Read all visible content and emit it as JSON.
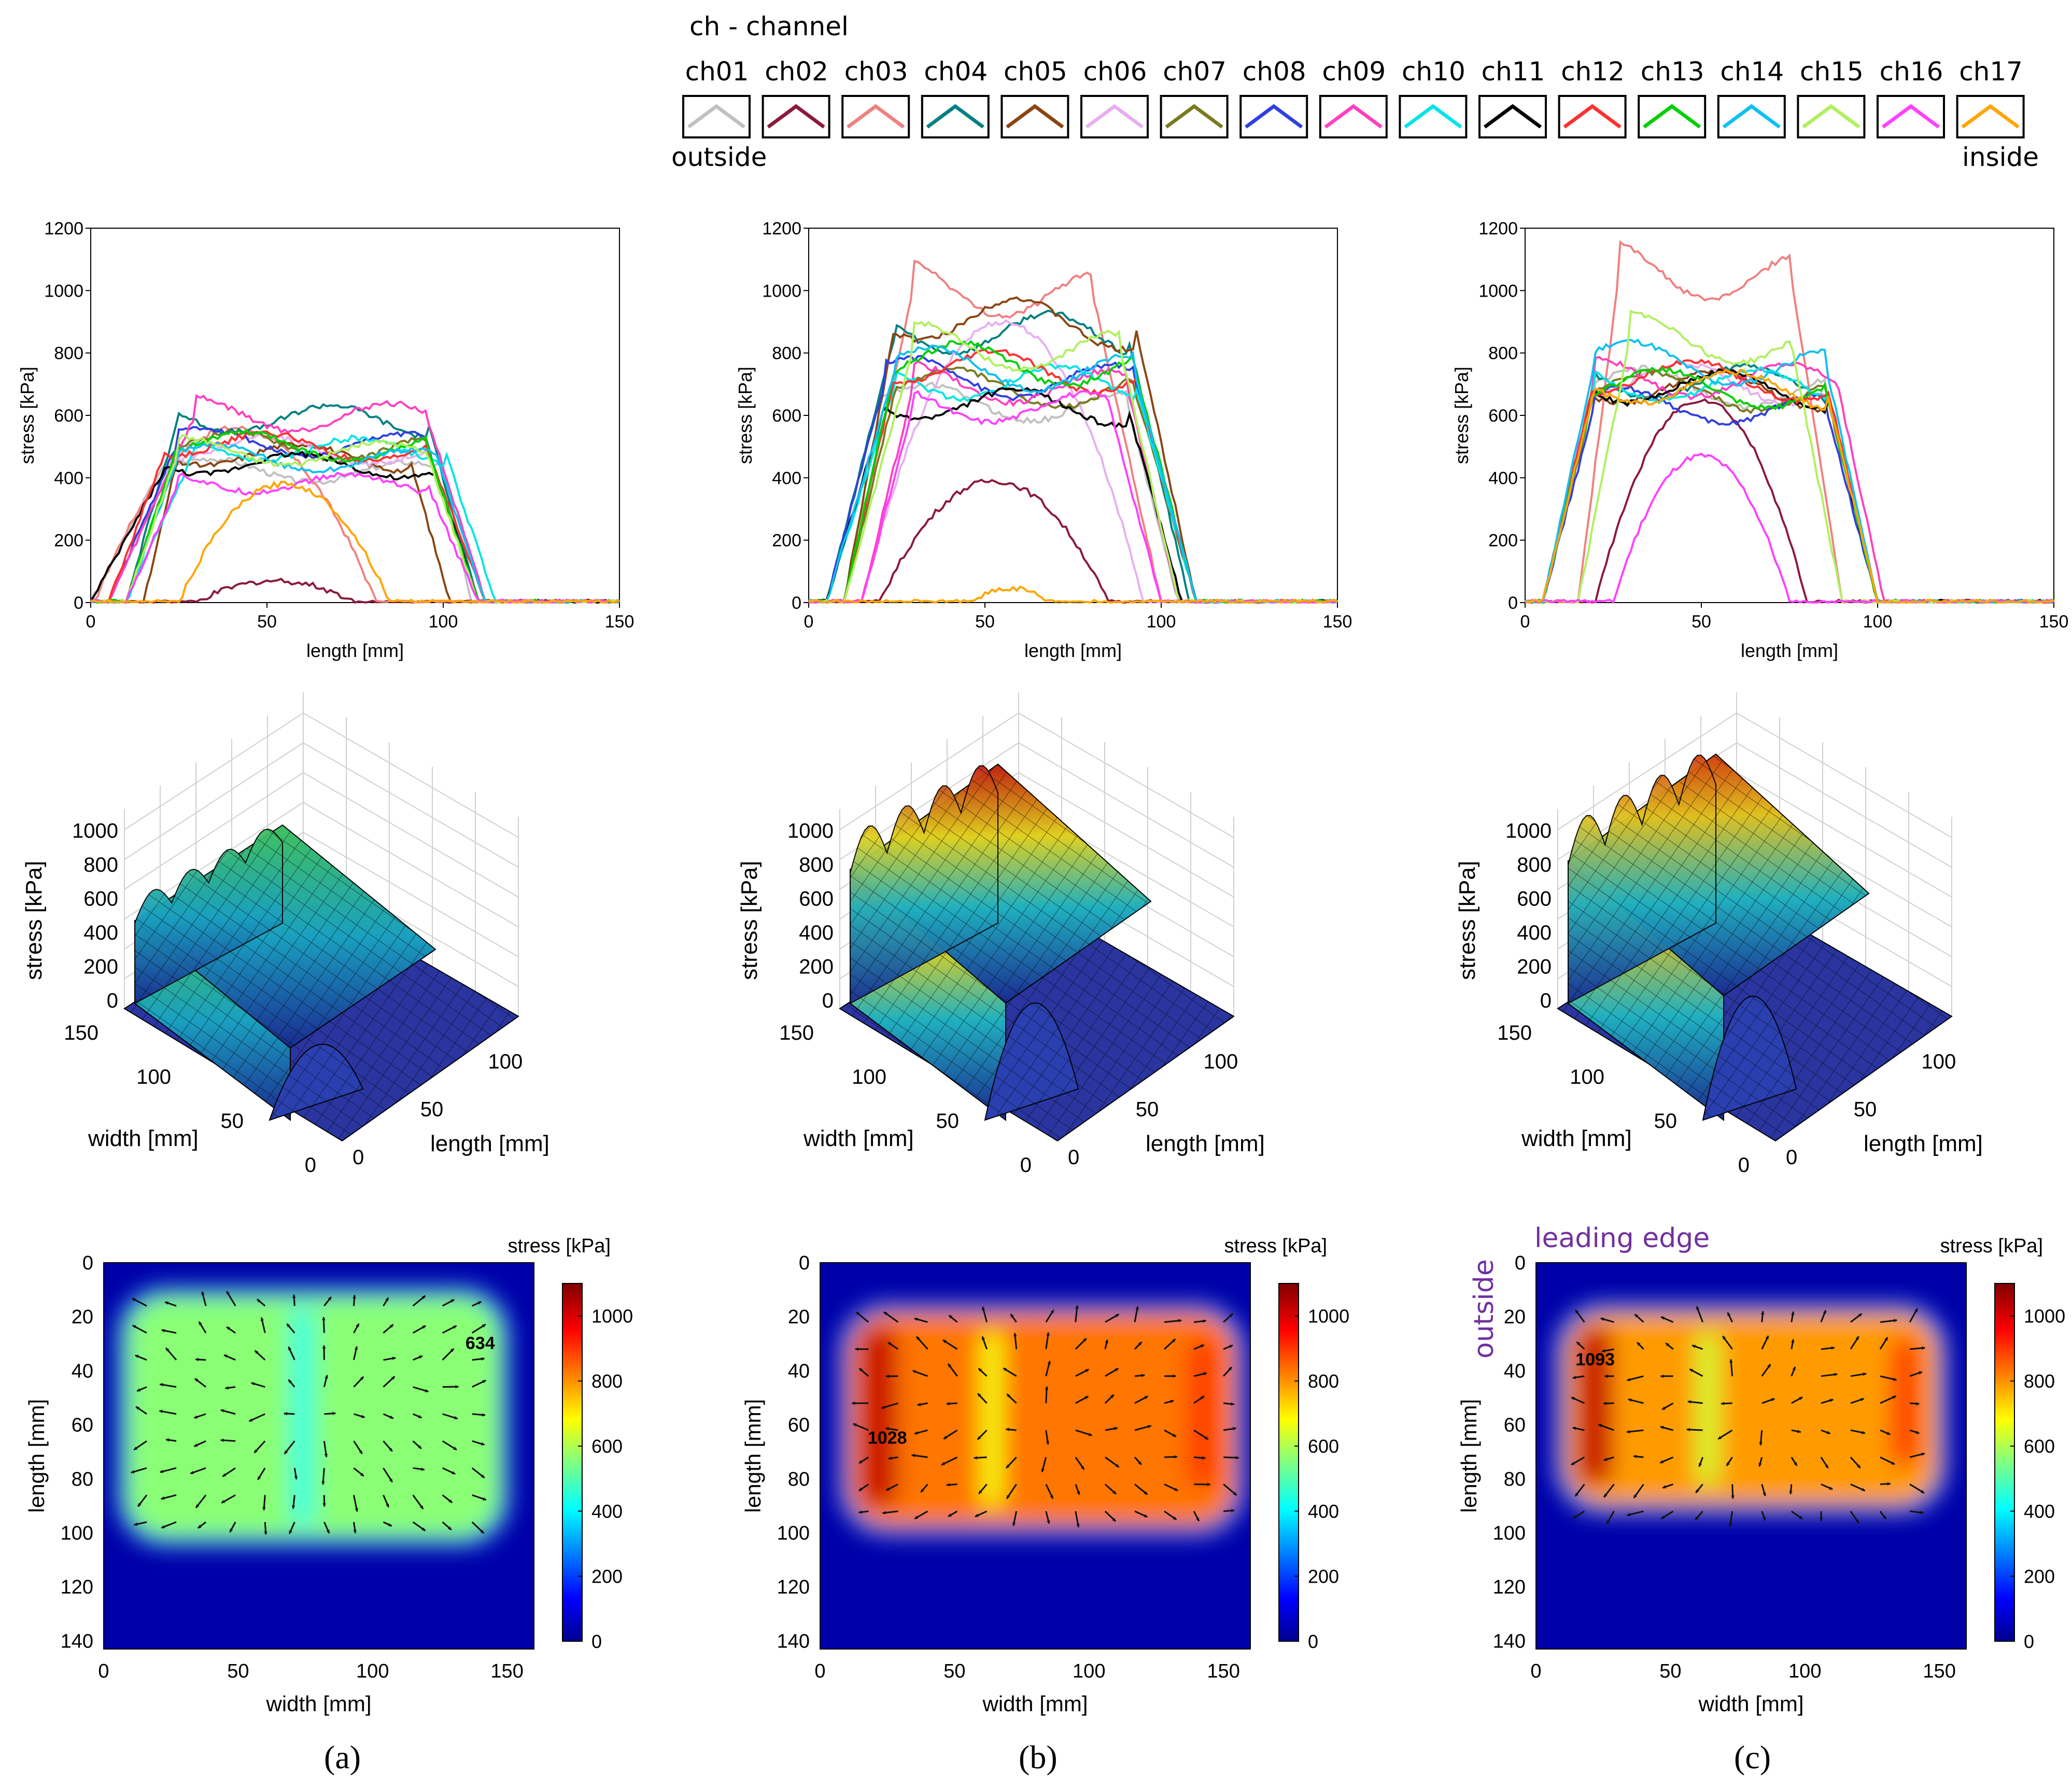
{
  "legend": {
    "title": "ch - channel",
    "channels": [
      {
        "name": "ch01",
        "color": "#c0c0c0"
      },
      {
        "name": "ch02",
        "color": "#8b1a3a"
      },
      {
        "name": "ch03",
        "color": "#f08080"
      },
      {
        "name": "ch04",
        "color": "#008080"
      },
      {
        "name": "ch05",
        "color": "#8b4513"
      },
      {
        "name": "ch06",
        "color": "#e6b0f0"
      },
      {
        "name": "ch07",
        "color": "#7a7a20"
      },
      {
        "name": "ch08",
        "color": "#3040e0"
      },
      {
        "name": "ch09",
        "color": "#ff40c0"
      },
      {
        "name": "ch10",
        "color": "#00e5e5"
      },
      {
        "name": "ch11",
        "color": "#000000"
      },
      {
        "name": "ch12",
        "color": "#ff3030"
      },
      {
        "name": "ch13",
        "color": "#00d000"
      },
      {
        "name": "ch14",
        "color": "#10c0f0"
      },
      {
        "name": "ch15",
        "color": "#b0f060"
      },
      {
        "name": "ch16",
        "color": "#ff40ff"
      },
      {
        "name": "ch17",
        "color": "#ffa500"
      }
    ],
    "outside_label": "outside",
    "inside_label": "inside"
  },
  "chart_data": [
    {
      "type": "line",
      "panel": "a",
      "xlabel": "length [mm]",
      "ylabel": "stress [kPa]",
      "xlim": [
        0,
        150
      ],
      "ylim": [
        0,
        1200
      ],
      "xticks": [
        0,
        50,
        100,
        150
      ],
      "yticks": [
        0,
        200,
        400,
        600,
        800,
        1000,
        1200
      ],
      "series": [
        {
          "name": "ch01",
          "profile": [
            0,
            20,
            100,
            108,
            0
          ],
          "plateau": 430
        },
        {
          "name": "ch02",
          "profile": [
            30,
            45,
            60,
            75,
            0
          ],
          "plateau": 70,
          "peak": true
        },
        {
          "name": "ch03",
          "profile": [
            10,
            22,
            60,
            90,
            0
          ],
          "plateau": 560,
          "peak": true
        },
        {
          "name": "ch04",
          "profile": [
            10,
            25,
            95,
            110,
            0
          ],
          "plateau": 600
        },
        {
          "name": "ch05",
          "profile": [
            15,
            25,
            90,
            102,
            0
          ],
          "plateau": 480
        },
        {
          "name": "ch06",
          "profile": [
            5,
            25,
            95,
            110,
            0
          ],
          "plateau": 500
        },
        {
          "name": "ch07",
          "profile": [
            10,
            25,
            95,
            110,
            0
          ],
          "plateau": 510
        },
        {
          "name": "ch08",
          "profile": [
            5,
            25,
            95,
            110,
            0
          ],
          "plateau": 520
        },
        {
          "name": "ch09",
          "profile": [
            5,
            30,
            95,
            112,
            0
          ],
          "plateau": 610
        },
        {
          "name": "ch10",
          "profile": [
            10,
            30,
            100,
            115,
            0
          ],
          "plateau": 500
        },
        {
          "name": "ch11",
          "profile": [
            0,
            22,
            97,
            110,
            0
          ],
          "plateau": 450
        },
        {
          "name": "ch12",
          "profile": [
            5,
            22,
            95,
            112,
            0
          ],
          "plateau": 510
        },
        {
          "name": "ch13",
          "profile": [
            10,
            25,
            95,
            110,
            0
          ],
          "plateau": 510
        },
        {
          "name": "ch14",
          "profile": [
            10,
            25,
            98,
            112,
            0
          ],
          "plateau": 470
        },
        {
          "name": "ch15",
          "profile": [
            10,
            25,
            95,
            110,
            0
          ],
          "plateau": 490
        },
        {
          "name": "ch16",
          "profile": [
            10,
            25,
            95,
            110,
            0
          ],
          "plateau": 390
        },
        {
          "name": "ch17",
          "profile": [
            25,
            40,
            70,
            85,
            0
          ],
          "plateau": 380,
          "peak": true
        }
      ]
    },
    {
      "type": "line",
      "panel": "b",
      "xlabel": "length [mm]",
      "ylabel": "stress [kPa]",
      "xlim": [
        0,
        150
      ],
      "ylim": [
        0,
        1200
      ],
      "xticks": [
        0,
        50,
        100,
        150
      ],
      "yticks": [
        0,
        200,
        400,
        600,
        800,
        1000,
        1200
      ],
      "series": [
        {
          "name": "ch01",
          "profile": [
            5,
            20,
            90,
            105,
            0
          ],
          "plateau": 650
        },
        {
          "name": "ch02",
          "profile": [
            20,
            40,
            65,
            85,
            0
          ],
          "plateau": 390,
          "peak": true
        },
        {
          "name": "ch03",
          "profile": [
            10,
            30,
            80,
            100,
            0
          ],
          "plateau": 1020
        },
        {
          "name": "ch04",
          "profile": [
            5,
            25,
            90,
            108,
            0
          ],
          "plateau": 880
        },
        {
          "name": "ch05",
          "profile": [
            10,
            25,
            92,
            110,
            0
          ],
          "plateau": 920
        },
        {
          "name": "ch06",
          "profile": [
            15,
            30,
            80,
            95,
            0
          ],
          "plateau": 900,
          "peak": true
        },
        {
          "name": "ch07",
          "profile": [
            10,
            25,
            92,
            110,
            0
          ],
          "plateau": 700
        },
        {
          "name": "ch08",
          "profile": [
            5,
            22,
            92,
            110,
            0
          ],
          "plateau": 730
        },
        {
          "name": "ch09",
          "profile": [
            15,
            30,
            90,
            105,
            0
          ],
          "plateau": 710
        },
        {
          "name": "ch10",
          "profile": [
            5,
            25,
            92,
            110,
            0
          ],
          "plateau": 720
        },
        {
          "name": "ch11",
          "profile": [
            5,
            22,
            90,
            106,
            0
          ],
          "plateau": 645
        },
        {
          "name": "ch12",
          "profile": [
            10,
            25,
            92,
            110,
            0
          ],
          "plateau": 760
        },
        {
          "name": "ch13",
          "profile": [
            10,
            25,
            92,
            110,
            0
          ],
          "plateau": 780
        },
        {
          "name": "ch14",
          "profile": [
            5,
            25,
            92,
            110,
            0
          ],
          "plateau": 760
        },
        {
          "name": "ch15",
          "profile": [
            10,
            30,
            88,
            105,
            0
          ],
          "plateau": 830
        },
        {
          "name": "ch16",
          "profile": [
            15,
            30,
            85,
            100,
            0
          ],
          "plateau": 640
        },
        {
          "name": "ch17",
          "profile": [
            45,
            52,
            62,
            68,
            0
          ],
          "plateau": 45,
          "peak": true
        }
      ]
    },
    {
      "type": "line",
      "panel": "c",
      "xlabel": "length [mm]",
      "ylabel": "stress [kPa]",
      "xlim": [
        0,
        150
      ],
      "ylim": [
        0,
        1200
      ],
      "xticks": [
        0,
        50,
        100,
        150
      ],
      "yticks": [
        0,
        200,
        400,
        600,
        800,
        1000,
        1200
      ],
      "series": [
        {
          "name": "ch01",
          "profile": [
            5,
            20,
            85,
            100,
            0
          ],
          "plateau": 700
        },
        {
          "name": "ch02",
          "profile": [
            20,
            35,
            65,
            80,
            0
          ],
          "plateau": 650,
          "peak": true
        },
        {
          "name": "ch03",
          "profile": [
            15,
            27,
            75,
            90,
            0
          ],
          "plateau": 1080
        },
        {
          "name": "ch04",
          "profile": [
            5,
            20,
            85,
            100,
            0
          ],
          "plateau": 720
        },
        {
          "name": "ch05",
          "profile": [
            5,
            20,
            85,
            100,
            0
          ],
          "plateau": 700
        },
        {
          "name": "ch06",
          "profile": [
            5,
            20,
            85,
            100,
            0
          ],
          "plateau": 720
        },
        {
          "name": "ch07",
          "profile": [
            5,
            20,
            85,
            100,
            0
          ],
          "plateau": 690
        },
        {
          "name": "ch08",
          "profile": [
            5,
            20,
            85,
            100,
            0
          ],
          "plateau": 640
        },
        {
          "name": "ch09",
          "profile": [
            5,
            20,
            88,
            102,
            0
          ],
          "plateau": 730
        },
        {
          "name": "ch10",
          "profile": [
            5,
            20,
            85,
            100,
            0
          ],
          "plateau": 710
        },
        {
          "name": "ch11",
          "profile": [
            5,
            20,
            85,
            100,
            0
          ],
          "plateau": 700
        },
        {
          "name": "ch12",
          "profile": [
            5,
            20,
            85,
            100,
            0
          ],
          "plateau": 730
        },
        {
          "name": "ch13",
          "profile": [
            5,
            20,
            85,
            100,
            0
          ],
          "plateau": 700
        },
        {
          "name": "ch14",
          "profile": [
            5,
            20,
            85,
            100,
            0
          ],
          "plateau": 780
        },
        {
          "name": "ch15",
          "profile": [
            15,
            30,
            75,
            90,
            0
          ],
          "plateau": 860
        },
        {
          "name": "ch16",
          "profile": [
            25,
            40,
            60,
            75,
            0
          ],
          "plateau": 470,
          "peak": true
        },
        {
          "name": "ch17",
          "profile": [
            5,
            20,
            85,
            100,
            0
          ],
          "plateau": 700
        }
      ]
    },
    {
      "type": "surface3d",
      "panel": "a",
      "zlabel": "stress [kPa]",
      "xlabel": "width [mm]",
      "ylabel": "length [mm]",
      "zticks": [
        0,
        200,
        400,
        600,
        800,
        1000
      ],
      "xticks": [
        150,
        100,
        50,
        0
      ],
      "yticks": [
        0,
        50,
        100
      ],
      "peak": 634
    },
    {
      "type": "surface3d",
      "panel": "b",
      "zlabel": "stress [kPa]",
      "xlabel": "width [mm]",
      "ylabel": "length [mm]",
      "zticks": [
        0,
        200,
        400,
        600,
        800,
        1000
      ],
      "xticks": [
        150,
        100,
        50,
        0
      ],
      "yticks": [
        0,
        50,
        100
      ],
      "peak": 1028
    },
    {
      "type": "surface3d",
      "panel": "c",
      "zlabel": "stress [kPa]",
      "xlabel": "width [mm]",
      "ylabel": "length [mm]",
      "zticks": [
        0,
        200,
        400,
        600,
        800,
        1000
      ],
      "xticks": [
        150,
        100,
        50,
        0
      ],
      "yticks": [
        0,
        50,
        100
      ],
      "peak": 1093
    },
    {
      "type": "heatmap",
      "panel": "a",
      "xlabel": "width [mm]",
      "ylabel": "length [mm]",
      "colorbar_label": "stress [kPa]",
      "xlim": [
        0,
        160
      ],
      "ylim": [
        0,
        143
      ],
      "xticks": [
        0,
        50,
        100,
        150
      ],
      "yticks": [
        0,
        20,
        40,
        60,
        80,
        100,
        120,
        140
      ],
      "cticks": [
        0,
        200,
        400,
        600,
        800,
        1000
      ],
      "clim": [
        0,
        1100
      ],
      "region": {
        "x": [
          8,
          148
        ],
        "y": [
          12,
          102
        ]
      },
      "level": 560,
      "peak_label": "634",
      "peak_at": [
        140,
        32
      ]
    },
    {
      "type": "heatmap",
      "panel": "b",
      "xlabel": "width [mm]",
      "ylabel": "length [mm]",
      "colorbar_label": "stress [kPa]",
      "xlim": [
        0,
        160
      ],
      "ylim": [
        0,
        143
      ],
      "xticks": [
        0,
        50,
        100,
        150
      ],
      "yticks": [
        0,
        20,
        40,
        60,
        80,
        100,
        120,
        140
      ],
      "cticks": [
        0,
        200,
        400,
        600,
        800,
        1000
      ],
      "clim": [
        0,
        1100
      ],
      "region": {
        "x": [
          10,
          155
        ],
        "y": [
          18,
          98
        ]
      },
      "level": 830,
      "peak_label": "1028",
      "peak_at": [
        25,
        67
      ]
    },
    {
      "type": "heatmap",
      "panel": "c",
      "xlabel": "width [mm]",
      "ylabel": "length [mm]",
      "colorbar_label": "stress [kPa]",
      "xlim": [
        0,
        160
      ],
      "ylim": [
        0,
        143
      ],
      "xticks": [
        0,
        50,
        100,
        150
      ],
      "yticks": [
        0,
        20,
        40,
        60,
        80,
        100,
        120,
        140
      ],
      "cticks": [
        0,
        200,
        400,
        600,
        800,
        1000
      ],
      "clim": [
        0,
        1100
      ],
      "region": {
        "x": [
          10,
          150
        ],
        "y": [
          18,
          90
        ]
      },
      "level": 790,
      "peak_label": "1093",
      "peak_at": [
        22,
        38
      ]
    }
  ],
  "annotations": {
    "leading_edge": "leading edge",
    "outside": "outside"
  },
  "captions": [
    "(a)",
    "(b)",
    "(c)"
  ]
}
